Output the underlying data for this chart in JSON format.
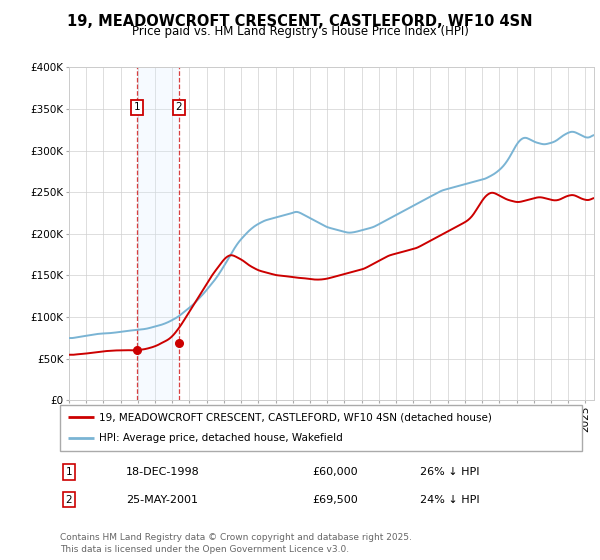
{
  "title": "19, MEADOWCROFT CRESCENT, CASTLEFORD, WF10 4SN",
  "subtitle": "Price paid vs. HM Land Registry's House Price Index (HPI)",
  "legend_line1": "19, MEADOWCROFT CRESCENT, CASTLEFORD, WF10 4SN (detached house)",
  "legend_line2": "HPI: Average price, detached house, Wakefield",
  "sale1_date": "18-DEC-1998",
  "sale1_price": 60000,
  "sale1_label": "26% ↓ HPI",
  "sale2_date": "25-MAY-2001",
  "sale2_price": 69500,
  "sale2_label": "24% ↓ HPI",
  "footer": "Contains HM Land Registry data © Crown copyright and database right 2025.\nThis data is licensed under the Open Government Licence v3.0.",
  "hpi_color": "#7ab4d4",
  "property_color": "#cc0000",
  "shade_color": "#ddeeff",
  "ylim": [
    0,
    400000
  ],
  "xlim_start": 1995.0,
  "xlim_end": 2025.5,
  "sale1_x": 1998.96,
  "sale2_x": 2001.39,
  "hpi_data": [
    75000,
    74500,
    75500,
    76000,
    76800,
    77200,
    77800,
    78500,
    79000,
    79800,
    80000,
    80500,
    80200,
    80800,
    81000,
    81500,
    82000,
    82800,
    83000,
    83500,
    84000,
    84200,
    84800,
    85000,
    85500,
    86000,
    87000,
    88000,
    89000,
    90000,
    91000,
    92500,
    94000,
    96000,
    98000,
    100000,
    103000,
    106000,
    109000,
    112000,
    115000,
    119000,
    123000,
    127000,
    131000,
    136000,
    140000,
    145000,
    150000,
    156000,
    162000,
    168000,
    175000,
    181000,
    187000,
    192000,
    196000,
    200000,
    204000,
    207000,
    210000,
    212000,
    214000,
    216000,
    217000,
    218000,
    219000,
    220000,
    221000,
    222000,
    223000,
    224000,
    225000,
    227000,
    226000,
    224000,
    222000,
    220000,
    218000,
    216000,
    214000,
    212000,
    210000,
    208000,
    207000,
    206000,
    205000,
    204000,
    203000,
    202000,
    201000,
    201500,
    202000,
    203000,
    204000,
    205000,
    206000,
    207000,
    208000,
    210000,
    212000,
    214000,
    216000,
    218000,
    220000,
    222000,
    224000,
    226000,
    228000,
    230000,
    232000,
    234000,
    236000,
    238000,
    240000,
    242000,
    244000,
    246000,
    248000,
    250000,
    252000,
    253000,
    254000,
    255000,
    256000,
    257000,
    258000,
    259000,
    260000,
    261000,
    262000,
    263000,
    264000,
    265000,
    266000,
    268000,
    270000,
    272000,
    275000,
    278000,
    282000,
    287000,
    293000,
    300000,
    307000,
    312000,
    315000,
    316000,
    314000,
    312000,
    310000,
    309000,
    308000,
    307000,
    308000,
    309000,
    310000,
    312000,
    315000,
    318000,
    320000,
    322000,
    323000,
    322000,
    320000,
    318000,
    316000,
    315000,
    316000,
    320000
  ],
  "prop_data": [
    55000,
    54500,
    55000,
    55500,
    55800,
    56000,
    56500,
    57000,
    57500,
    58000,
    58500,
    59000,
    59200,
    59500,
    59800,
    60000,
    60000,
    60200,
    60300,
    60400,
    60000,
    60200,
    60400,
    60800,
    61200,
    62000,
    63000,
    64000,
    65500,
    67000,
    69500,
    71000,
    73000,
    76000,
    80000,
    85000,
    90000,
    96000,
    102000,
    108000,
    114000,
    120000,
    126000,
    132000,
    138000,
    144000,
    150000,
    155000,
    160000,
    165000,
    170000,
    173000,
    175000,
    174000,
    172000,
    170000,
    168000,
    165000,
    162000,
    160000,
    158000,
    156000,
    155000,
    154000,
    153000,
    152000,
    151000,
    150000,
    150000,
    149500,
    149000,
    148500,
    148000,
    147500,
    147000,
    147000,
    146500,
    146000,
    145500,
    145000,
    145000,
    145000,
    145500,
    146000,
    147000,
    148000,
    149000,
    150000,
    151000,
    152000,
    153000,
    154000,
    155000,
    156000,
    157000,
    158000,
    160000,
    162000,
    164000,
    166000,
    168000,
    170000,
    172000,
    174000,
    175000,
    176000,
    177000,
    178000,
    179000,
    180000,
    181000,
    182000,
    183000,
    185000,
    187000,
    189000,
    191000,
    193000,
    195000,
    197000,
    199000,
    201000,
    203000,
    205000,
    207000,
    209000,
    211000,
    213000,
    215000,
    218000,
    222000,
    228000,
    234000,
    240000,
    245000,
    248000,
    250000,
    249000,
    247000,
    245000,
    243000,
    241000,
    240000,
    239000,
    238000,
    238000,
    239000,
    240000,
    241000,
    242000,
    243000,
    244000,
    244000,
    243000,
    242000,
    241000,
    240000,
    240000,
    241000,
    243000,
    245000,
    246000,
    247000,
    246000,
    244000,
    242000,
    241000,
    240000,
    241000,
    244000
  ]
}
